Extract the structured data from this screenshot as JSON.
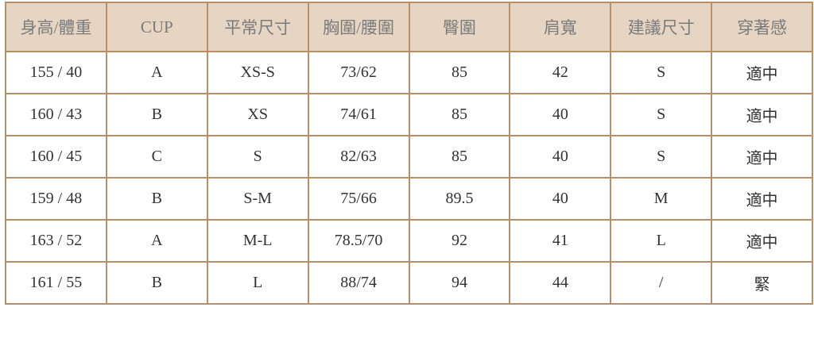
{
  "headers": [
    "身高/體重",
    "CUP",
    "平常尺寸",
    "胸圍/腰圍",
    "臀圍",
    "肩寬",
    "建議尺寸",
    "穿著感"
  ],
  "rows": [
    [
      "155 / 40",
      "A",
      "XS-S",
      "73/62",
      "85",
      "42",
      "S",
      "適中"
    ],
    [
      "160 / 43",
      "B",
      "XS",
      "74/61",
      "85",
      "40",
      "S",
      "適中"
    ],
    [
      "160 / 45",
      "C",
      "S",
      "82/63",
      "85",
      "40",
      "S",
      "適中"
    ],
    [
      "159 / 48",
      "B",
      "S-M",
      "75/66",
      "89.5",
      "40",
      "M",
      "適中"
    ],
    [
      "163 / 52",
      "A",
      "M-L",
      "78.5/70",
      "92",
      "41",
      "L",
      "適中"
    ],
    [
      "161 / 55",
      "B",
      "L",
      "88/74",
      "94",
      "44",
      "/",
      "緊"
    ]
  ],
  "colors": {
    "header_bg": "#e6d5c3",
    "border": "#b98f68"
  }
}
